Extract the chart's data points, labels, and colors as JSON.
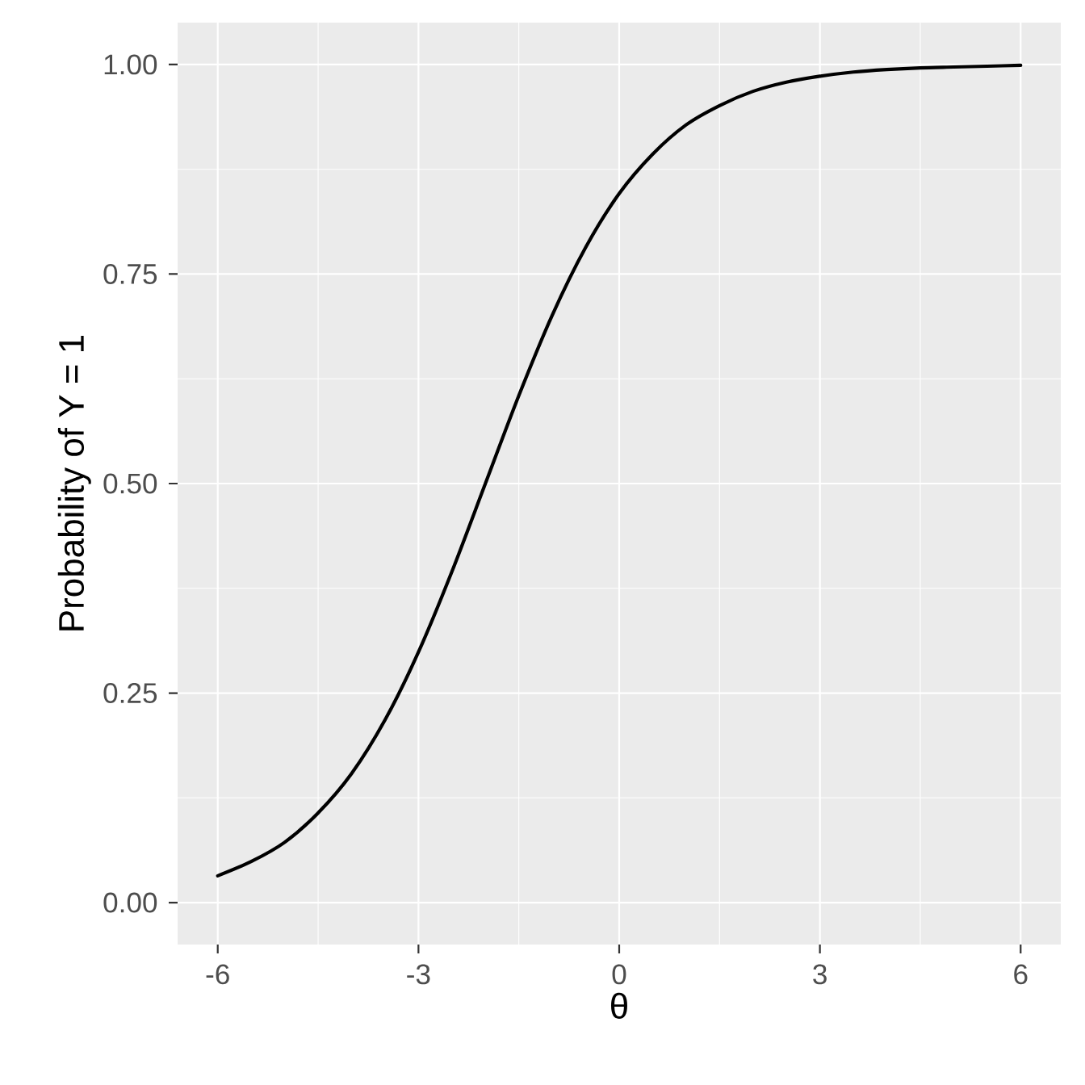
{
  "chart_data": {
    "type": "line",
    "xlabel": "θ",
    "ylabel": "Probability of Y = 1",
    "x": [
      -6,
      -5.5,
      -5,
      -4.5,
      -4,
      -3.5,
      -3,
      -2.5,
      -2,
      -1.5,
      -1,
      -0.5,
      0,
      0.5,
      1,
      1.5,
      2,
      2.5,
      3,
      3.5,
      4,
      4.5,
      5,
      5.5,
      6
    ],
    "series": [
      {
        "color": "#000000",
        "values": [
          0.032,
          0.049,
          0.072,
          0.107,
          0.154,
          0.218,
          0.299,
          0.395,
          0.5,
          0.605,
          0.701,
          0.782,
          0.846,
          0.893,
          0.928,
          0.951,
          0.968,
          0.979,
          0.986,
          0.991,
          0.994,
          0.996,
          0.997,
          0.998,
          0.999
        ]
      }
    ],
    "xlim": [
      -6.6,
      6.6
    ],
    "ylim": [
      -0.05,
      1.05
    ],
    "xticks": [
      -6,
      -3,
      0,
      3,
      6
    ],
    "yticks": [
      {
        "value": 0,
        "label": "0.00"
      },
      {
        "value": 0.25,
        "label": "0.25"
      },
      {
        "value": 0.5,
        "label": "0.50"
      },
      {
        "value": 0.75,
        "label": "0.75"
      },
      {
        "value": 1,
        "label": "1.00"
      }
    ],
    "grid": true
  }
}
